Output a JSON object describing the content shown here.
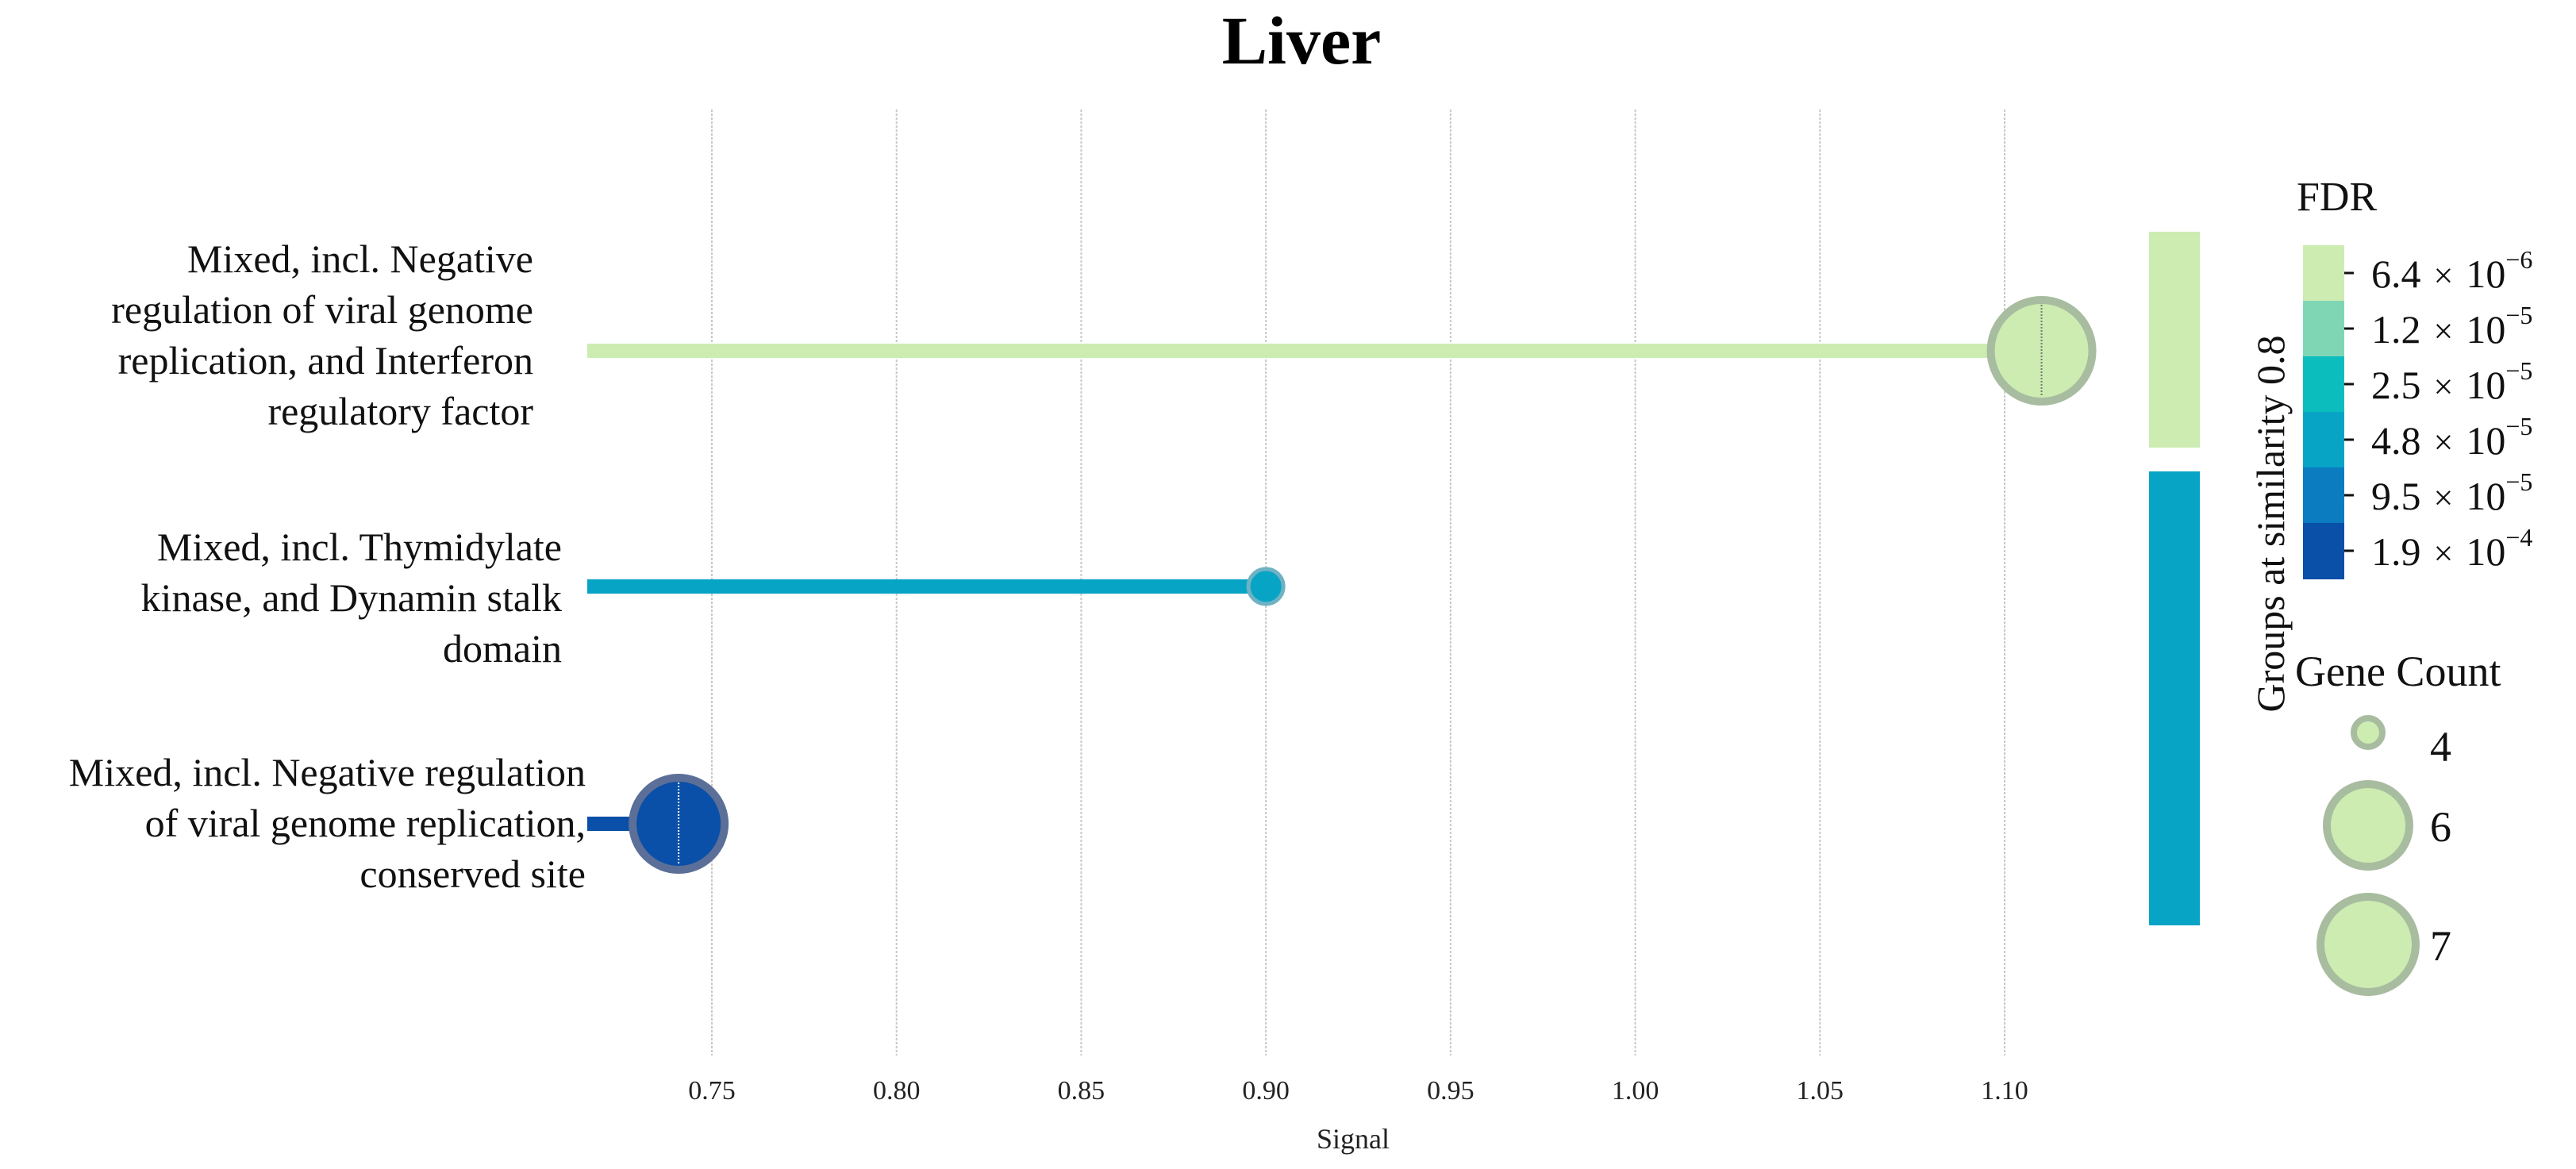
{
  "chart_data": {
    "type": "scatter",
    "title": "Liver",
    "xlabel": "Signal",
    "ylabel": "",
    "xlim": [
      0.716,
      1.14
    ],
    "xticks": [
      "0.75",
      "0.80",
      "0.85",
      "0.90",
      "0.95",
      "1.00",
      "1.05",
      "1.10"
    ],
    "grid": "vertical",
    "categories": [
      {
        "lines": [
          "Mixed, incl. Negative",
          "regulation of viral genome",
          "replication, and Interferon",
          "regulatory factor"
        ],
        "signal": 1.11,
        "fdr": 6.4e-06,
        "gene_count": 7,
        "color": "#ccecb1"
      },
      {
        "lines": [
          "Mixed, incl. Thymidylate",
          "kinase, and Dynamin stalk",
          "domain"
        ],
        "signal": 0.9,
        "fdr": 4.8e-05,
        "gene_count": 4,
        "color": "#08a4c6"
      },
      {
        "lines": [
          "Mixed, incl. Negative regulation",
          "of viral genome replication,",
          "conserved site"
        ],
        "signal": 0.741,
        "fdr": 0.00019,
        "gene_count": 6,
        "color": "#0a4fa8"
      }
    ],
    "groups": {
      "label": "Groups at similarity 0.8",
      "blocks": [
        {
          "color": "#ccecb1",
          "rows": [
            0
          ]
        },
        {
          "color": "#08a4c6",
          "rows": [
            1,
            2
          ]
        }
      ]
    },
    "fdr_legend": {
      "title": "FDR",
      "entries": [
        {
          "mantissa": "6.4",
          "exponent": "−6",
          "color": "#ccecb1"
        },
        {
          "mantissa": "1.2",
          "exponent": "−5",
          "color": "#7fd6b5"
        },
        {
          "mantissa": "2.5",
          "exponent": "−5",
          "color": "#0bbdbd"
        },
        {
          "mantissa": "4.8",
          "exponent": "−5",
          "color": "#08a4c6"
        },
        {
          "mantissa": "9.5",
          "exponent": "−5",
          "color": "#0a7cbf"
        },
        {
          "mantissa": "1.9",
          "exponent": "−4",
          "color": "#0a4fa8"
        }
      ],
      "times": "×",
      "base": "10"
    },
    "size_legend": {
      "title": "Gene Count",
      "entries": [
        {
          "label": "4",
          "value": 4
        },
        {
          "label": "6",
          "value": 6
        },
        {
          "label": "7",
          "value": 7
        }
      ],
      "color": "#ccecb1",
      "edge": "#a8bca0"
    }
  }
}
